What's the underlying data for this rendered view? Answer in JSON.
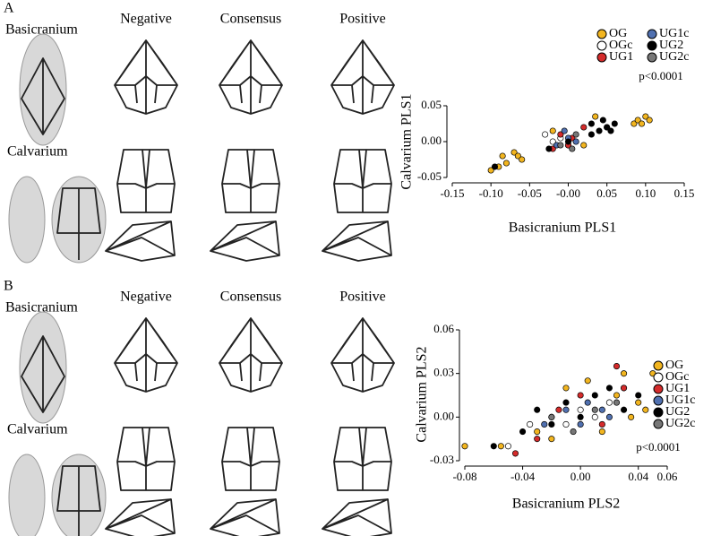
{
  "panels": [
    {
      "label": "A",
      "regions": [
        "Basicranium",
        "Calvarium"
      ],
      "columns": [
        "Negative",
        "Consensus",
        "Positive"
      ]
    },
    {
      "label": "B",
      "regions": [
        "Basicranium",
        "Calvarium"
      ],
      "columns": [
        "Negative",
        "Consensus",
        "Positive"
      ]
    }
  ],
  "chart_data": [
    {
      "type": "scatter",
      "x_label": "Basicranium PLS1",
      "y_label": "Calvarium PLS1",
      "annotation": "p<0.0001",
      "legend": "top",
      "xlim": [
        -0.15,
        0.15
      ],
      "xticks": [
        {
          "value": -0.15,
          "label": "-0.15"
        },
        {
          "value": -0.1,
          "label": "-0.10"
        },
        {
          "value": -0.05,
          "label": "-0.05"
        },
        {
          "value": 0,
          "label": "-0.00"
        },
        {
          "value": 0.05,
          "label": "0.05"
        },
        {
          "value": 0.1,
          "label": "0.10"
        },
        {
          "value": 0.15,
          "label": "0.15"
        }
      ],
      "ylim": [
        -0.05,
        0.05
      ],
      "yticks": [
        {
          "value": -0.05,
          "label": "-0.05"
        },
        {
          "value": 0,
          "label": "0.00"
        },
        {
          "value": 0.05,
          "label": "0.05"
        }
      ],
      "series": [
        {
          "name": "OG",
          "color": "#f2b51f",
          "x": [
            -0.1,
            -0.09,
            -0.085,
            -0.08,
            -0.07,
            -0.065,
            -0.06,
            -0.02,
            0.02,
            0.035,
            0.05,
            0.085,
            0.09,
            0.095,
            0.1,
            0.105
          ],
          "values": [
            -0.04,
            -0.035,
            -0.02,
            -0.03,
            -0.015,
            -0.02,
            -0.025,
            0.015,
            -0.005,
            0.035,
            0.02,
            0.025,
            0.03,
            0.025,
            0.035,
            0.03
          ]
        },
        {
          "name": "OGc",
          "color": "#ffffff",
          "x": [
            -0.03,
            -0.02,
            -0.01,
            0.0
          ],
          "values": [
            0.01,
            0.0,
            0.005,
            -0.005
          ]
        },
        {
          "name": "UG1",
          "color": "#d42b2b",
          "x": [
            -0.02,
            -0.01,
            0.0,
            0.005,
            0.02
          ],
          "values": [
            -0.01,
            0.01,
            -0.005,
            0.005,
            0.02
          ]
        },
        {
          "name": "UG1c",
          "color": "#5070b0",
          "x": [
            -0.015,
            -0.005,
            0.0,
            0.01
          ],
          "values": [
            -0.005,
            0.015,
            0.005,
            0.0
          ]
        },
        {
          "name": "UG2",
          "color": "#000000",
          "x": [
            -0.095,
            -0.025,
            0.0,
            0.03,
            0.03,
            0.04,
            0.045,
            0.05,
            0.055,
            0.06
          ],
          "values": [
            -0.035,
            -0.01,
            0.0,
            0.025,
            0.01,
            0.015,
            0.03,
            0.02,
            0.015,
            0.025
          ]
        },
        {
          "name": "UG2c",
          "color": "#777777",
          "x": [
            -0.01,
            0.005,
            0.01
          ],
          "values": [
            -0.005,
            -0.01,
            0.01
          ]
        }
      ]
    },
    {
      "type": "scatter",
      "x_label": "Basicranium PLS2",
      "y_label": "Calvarium PLS2",
      "annotation": "p<0.0001",
      "legend": "right",
      "xlim": [
        -0.08,
        0.06
      ],
      "xticks": [
        {
          "value": -0.08,
          "label": "-0.08"
        },
        {
          "value": -0.04,
          "label": "-0.04"
        },
        {
          "value": 0,
          "label": "0.00"
        },
        {
          "value": 0.04,
          "label": "0.04"
        },
        {
          "value": 0.06,
          "label": "0.06"
        }
      ],
      "ylim": [
        -0.03,
        0.06
      ],
      "yticks": [
        {
          "value": -0.03,
          "label": "-0.03"
        },
        {
          "value": 0,
          "label": "0.00"
        },
        {
          "value": 0.03,
          "label": "0.03"
        },
        {
          "value": 0.06,
          "label": "0.06"
        }
      ],
      "series": [
        {
          "name": "OG",
          "color": "#f2b51f",
          "x": [
            -0.08,
            -0.055,
            -0.03,
            -0.02,
            -0.01,
            0.005,
            0.015,
            0.025,
            0.03,
            0.035,
            0.04,
            0.045,
            0.05
          ],
          "values": [
            -0.02,
            -0.02,
            -0.01,
            -0.015,
            0.02,
            0.025,
            -0.01,
            0.015,
            0.03,
            0.0,
            0.01,
            0.005,
            0.03
          ]
        },
        {
          "name": "OGc",
          "color": "#ffffff",
          "x": [
            -0.05,
            -0.035,
            -0.02,
            -0.01,
            0.0,
            0.01,
            0.02,
            0.03
          ],
          "values": [
            -0.02,
            -0.005,
            0.0,
            -0.005,
            0.005,
            0.0,
            0.01,
            0.02
          ]
        },
        {
          "name": "UG1",
          "color": "#d42b2b",
          "x": [
            -0.045,
            -0.03,
            -0.015,
            0.0,
            0.015,
            0.025,
            0.03
          ],
          "values": [
            -0.025,
            -0.015,
            0.005,
            0.015,
            -0.005,
            0.035,
            0.02
          ]
        },
        {
          "name": "UG1c",
          "color": "#5070b0",
          "x": [
            -0.025,
            -0.01,
            0.0,
            0.005,
            0.015,
            0.02
          ],
          "values": [
            -0.005,
            0.005,
            -0.005,
            0.01,
            0.005,
            0.0
          ]
        },
        {
          "name": "UG2",
          "color": "#000000",
          "x": [
            -0.06,
            -0.04,
            -0.03,
            -0.02,
            -0.01,
            0.0,
            0.01,
            0.02,
            0.03,
            0.04
          ],
          "values": [
            -0.02,
            -0.01,
            0.005,
            -0.005,
            0.01,
            0.0,
            0.015,
            0.02,
            0.005,
            0.015
          ]
        },
        {
          "name": "UG2c",
          "color": "#777777",
          "x": [
            -0.02,
            -0.005,
            0.01,
            0.025
          ],
          "values": [
            0.0,
            -0.01,
            0.005,
            0.01
          ]
        }
      ]
    }
  ]
}
